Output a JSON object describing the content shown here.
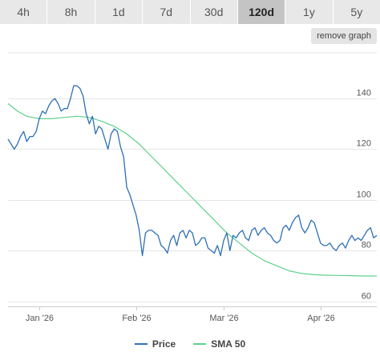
{
  "tabs": [
    {
      "label": "4h",
      "active": false
    },
    {
      "label": "8h",
      "active": false
    },
    {
      "label": "1d",
      "active": false
    },
    {
      "label": "7d",
      "active": false
    },
    {
      "label": "30d",
      "active": false
    },
    {
      "label": "120d",
      "active": true
    },
    {
      "label": "1y",
      "active": false
    },
    {
      "label": "5y",
      "active": false
    }
  ],
  "remove_graph_label": "remove graph",
  "colors": {
    "price": "#2f6fb5",
    "sma": "#5fd08c",
    "grid": "#e6e6e6"
  },
  "chart_data": {
    "type": "line",
    "x_ticks": [
      "Jan '26",
      "Feb '26",
      "Mar '26",
      "Apr '26"
    ],
    "x_tick_pos": [
      10,
      41,
      69,
      100
    ],
    "y_ticks": [
      60,
      80,
      100,
      120,
      140
    ],
    "xlim": [
      0,
      118
    ],
    "ylim": [
      58,
      158
    ],
    "grid": "horizontal",
    "legend_position": "bottom-center",
    "series": [
      {
        "name": "Price",
        "color": "#2f6fb5",
        "x": [
          0,
          1,
          2,
          3,
          4,
          5,
          6,
          7,
          8,
          9,
          10,
          11,
          12,
          13,
          14,
          15,
          16,
          17,
          18,
          19,
          20,
          21,
          22,
          23,
          24,
          25,
          26,
          27,
          28,
          29,
          30,
          31,
          32,
          33,
          34,
          35,
          36,
          37,
          38,
          39,
          40,
          41,
          42,
          43,
          44,
          45,
          46,
          47,
          48,
          49,
          50,
          51,
          52,
          53,
          54,
          55,
          56,
          57,
          58,
          59,
          60,
          61,
          62,
          63,
          64,
          65,
          66,
          67,
          68,
          69,
          70,
          71,
          72,
          73,
          74,
          75,
          76,
          77,
          78,
          79,
          80,
          81,
          82,
          83,
          84,
          85,
          86,
          87,
          88,
          89,
          90,
          91,
          92,
          93,
          94,
          95,
          96,
          97,
          98,
          99,
          100,
          101,
          102,
          103,
          104,
          105,
          106,
          107,
          108,
          109,
          110,
          111,
          112,
          113,
          114,
          115,
          116,
          117,
          118
        ],
        "values": [
          124,
          122,
          120,
          122,
          125,
          127,
          123,
          125,
          125,
          127,
          132,
          135,
          134,
          137,
          139,
          140,
          138,
          135,
          136,
          136,
          140,
          145,
          145,
          144,
          141,
          134,
          130,
          133,
          126,
          129,
          128,
          124,
          120,
          126,
          128,
          127,
          121,
          117,
          105,
          102,
          98,
          94,
          88,
          78,
          87,
          88,
          88,
          87,
          86,
          82,
          81,
          79,
          84,
          86,
          82,
          87,
          88,
          85,
          88,
          87,
          82,
          83,
          85,
          85,
          81,
          80,
          79,
          82,
          78,
          84,
          87,
          80,
          86,
          85,
          87,
          88,
          85,
          84,
          88,
          89,
          86,
          88,
          89,
          87,
          86,
          84,
          83,
          84,
          89,
          90,
          88,
          91,
          93,
          94,
          89,
          87,
          89,
          92,
          91,
          87,
          83,
          82,
          82,
          83,
          81,
          80,
          82,
          83,
          81,
          84,
          86,
          84,
          85,
          84,
          86,
          88,
          89,
          85,
          86
        ]
      },
      {
        "name": "SMA 50",
        "color": "#5fd08c",
        "x": [
          0,
          3,
          6,
          10,
          14,
          18,
          22,
          26,
          30,
          34,
          38,
          42,
          46,
          50,
          54,
          58,
          62,
          66,
          70,
          74,
          78,
          82,
          86,
          90,
          94,
          98,
          102,
          106,
          110,
          114,
          118
        ],
        "values": [
          138,
          135,
          133,
          132,
          132,
          132.5,
          133,
          132.5,
          131,
          129,
          126,
          122,
          117,
          112,
          107,
          102,
          97,
          92,
          87,
          83,
          79,
          76,
          74,
          72,
          71,
          70.5,
          70.3,
          70.2,
          70.1,
          70,
          70
        ]
      }
    ]
  }
}
